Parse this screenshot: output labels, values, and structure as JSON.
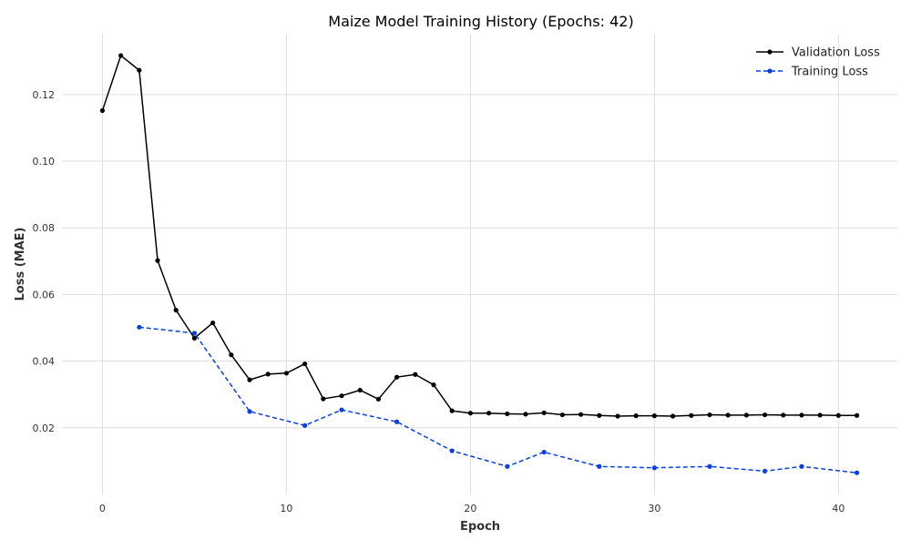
{
  "chart_data": {
    "type": "line",
    "title": "Maize Model Training History (Epochs: 42)",
    "xlabel": "Epoch",
    "ylabel": "Loss (MAE)",
    "xlim": [
      -2.2,
      43.2
    ],
    "ylim": [
      0.0,
      0.138
    ],
    "xticks": [
      0,
      10,
      20,
      30,
      40
    ],
    "xtick_labels": [
      "0",
      "10",
      "20",
      "30",
      "40"
    ],
    "yticks": [
      0.02,
      0.04,
      0.06,
      0.08,
      0.1,
      0.12
    ],
    "ytick_labels": [
      "0.02",
      "0.04",
      "0.06",
      "0.08",
      "0.10",
      "0.12"
    ],
    "grid": true,
    "legend_position": "top-right",
    "series": [
      {
        "name": "Validation Loss",
        "color": "#000000",
        "line_style": "solid",
        "marker": "circle",
        "x": [
          0,
          1,
          2,
          3,
          4,
          5,
          6,
          7,
          8,
          9,
          10,
          11,
          12,
          13,
          14,
          15,
          16,
          17,
          18,
          19,
          20,
          21,
          22,
          23,
          24,
          25,
          26,
          27,
          28,
          29,
          30,
          31,
          32,
          33,
          34,
          35,
          36,
          37,
          38,
          39,
          40,
          41
        ],
        "y": [
          0.1152,
          0.1317,
          0.1273,
          0.0702,
          0.0553,
          0.0469,
          0.0515,
          0.0419,
          0.0344,
          0.0361,
          0.0364,
          0.0392,
          0.0287,
          0.0296,
          0.0313,
          0.0286,
          0.0352,
          0.036,
          0.0329,
          0.0251,
          0.0244,
          0.0244,
          0.0242,
          0.0241,
          0.0245,
          0.0239,
          0.024,
          0.0237,
          0.0235,
          0.0236,
          0.0236,
          0.0235,
          0.0237,
          0.0239,
          0.0238,
          0.0238,
          0.0239,
          0.0238,
          0.0238,
          0.0238,
          0.0237,
          0.0237
        ]
      },
      {
        "name": "Training Loss",
        "color": "#0b3fe0",
        "line_style": "dashed",
        "marker": "circle",
        "x": [
          2,
          5,
          8,
          11,
          13,
          16,
          19,
          22,
          24,
          27,
          30,
          33,
          36,
          38,
          41
        ],
        "y": [
          0.0502,
          0.0484,
          0.0249,
          0.0207,
          0.0254,
          0.0218,
          0.0131,
          0.0084,
          0.0127,
          0.0084,
          0.008,
          0.0084,
          0.007,
          0.0084,
          0.0065
        ]
      }
    ]
  }
}
